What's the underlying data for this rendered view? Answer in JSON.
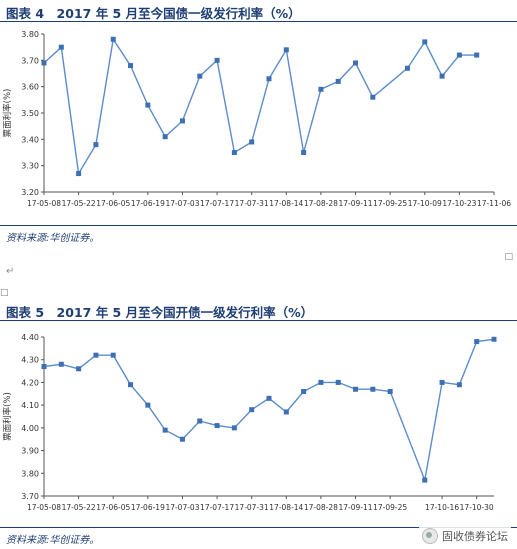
{
  "figure1": {
    "title": "图表 4　2017 年 5 月至今国债一级发行利率（%）",
    "source": "资料来源:华创证券。",
    "para_mark": "↵"
  },
  "figure2": {
    "title": "图表 5　2017 年 5 月至今国开债一级发行利率（%）",
    "source": "资料来源:华创证券。",
    "para_mark": "↵"
  },
  "watermark": {
    "text": "固收债券论坛"
  },
  "chart_data": [
    {
      "type": "line",
      "title": "",
      "ylabel": "票面利率(%)",
      "ylim": [
        3.2,
        3.8
      ],
      "yticks": [
        "3.20",
        "3.30",
        "3.40",
        "3.50",
        "3.60",
        "3.70",
        "3.80"
      ],
      "xticks": [
        "17-05-08",
        "17-05-22",
        "17-06-05",
        "17-06-19",
        "17-07-03",
        "17-07-17",
        "17-07-31",
        "17-08-14",
        "17-08-28",
        "17-09-11",
        "17-09-25",
        "17-10-09",
        "17-10-23",
        "17-11-06"
      ],
      "xlim": [
        "2017-05-08",
        "2017-11-06"
      ],
      "x": [
        "2017-05-08",
        "2017-05-15",
        "2017-05-22",
        "2017-05-29",
        "2017-06-05",
        "2017-06-12",
        "2017-06-19",
        "2017-06-26",
        "2017-07-03",
        "2017-07-10",
        "2017-07-17",
        "2017-07-24",
        "2017-07-31",
        "2017-08-07",
        "2017-08-14",
        "2017-08-21",
        "2017-08-28",
        "2017-09-04",
        "2017-09-11",
        "2017-09-18",
        "2017-10-02",
        "2017-10-09",
        "2017-10-16",
        "2017-10-23",
        "2017-10-30"
      ],
      "y": [
        3.69,
        3.75,
        3.27,
        3.38,
        3.78,
        3.68,
        3.53,
        3.41,
        3.47,
        3.64,
        3.7,
        3.35,
        3.39,
        3.63,
        3.74,
        3.35,
        3.59,
        3.62,
        3.69,
        3.56,
        3.67,
        3.77,
        3.64,
        3.72,
        3.72
      ],
      "grid": false,
      "color": "#5b8ccc",
      "marker_color": "#3d6fb3"
    },
    {
      "type": "line",
      "title": "",
      "ylabel": "票面利率(%)",
      "ylim": [
        3.7,
        4.4
      ],
      "yticks": [
        "3.70",
        "3.80",
        "3.90",
        "4.00",
        "4.10",
        "4.20",
        "4.30",
        "4.40"
      ],
      "xticks": [
        "17-05-08",
        "17-05-22",
        "17-06-05",
        "17-06-19",
        "17-07-03",
        "17-07-17",
        "17-07-31",
        "17-08-14",
        "17-08-28",
        "17-09-11",
        "17-09-25",
        "17-10-16",
        "17-10-30"
      ],
      "xlim": [
        "2017-05-08",
        "2017-11-06"
      ],
      "x": [
        "2017-05-08",
        "2017-05-15",
        "2017-05-22",
        "2017-05-29",
        "2017-06-05",
        "2017-06-12",
        "2017-06-19",
        "2017-06-26",
        "2017-07-03",
        "2017-07-10",
        "2017-07-17",
        "2017-07-24",
        "2017-07-31",
        "2017-08-07",
        "2017-08-14",
        "2017-08-21",
        "2017-08-28",
        "2017-09-04",
        "2017-09-11",
        "2017-09-18",
        "2017-09-25",
        "2017-10-09",
        "2017-10-16",
        "2017-10-23",
        "2017-10-30",
        "2017-11-06"
      ],
      "y": [
        4.27,
        4.28,
        4.26,
        4.32,
        4.32,
        4.19,
        4.1,
        3.99,
        3.95,
        4.03,
        4.01,
        4.0,
        4.08,
        4.13,
        4.07,
        4.16,
        4.2,
        4.2,
        4.17,
        4.17,
        4.16,
        3.77,
        4.2,
        4.19,
        4.38,
        4.39
      ],
      "grid": false,
      "color": "#5b8ccc",
      "marker_color": "#3d6fb3"
    }
  ]
}
